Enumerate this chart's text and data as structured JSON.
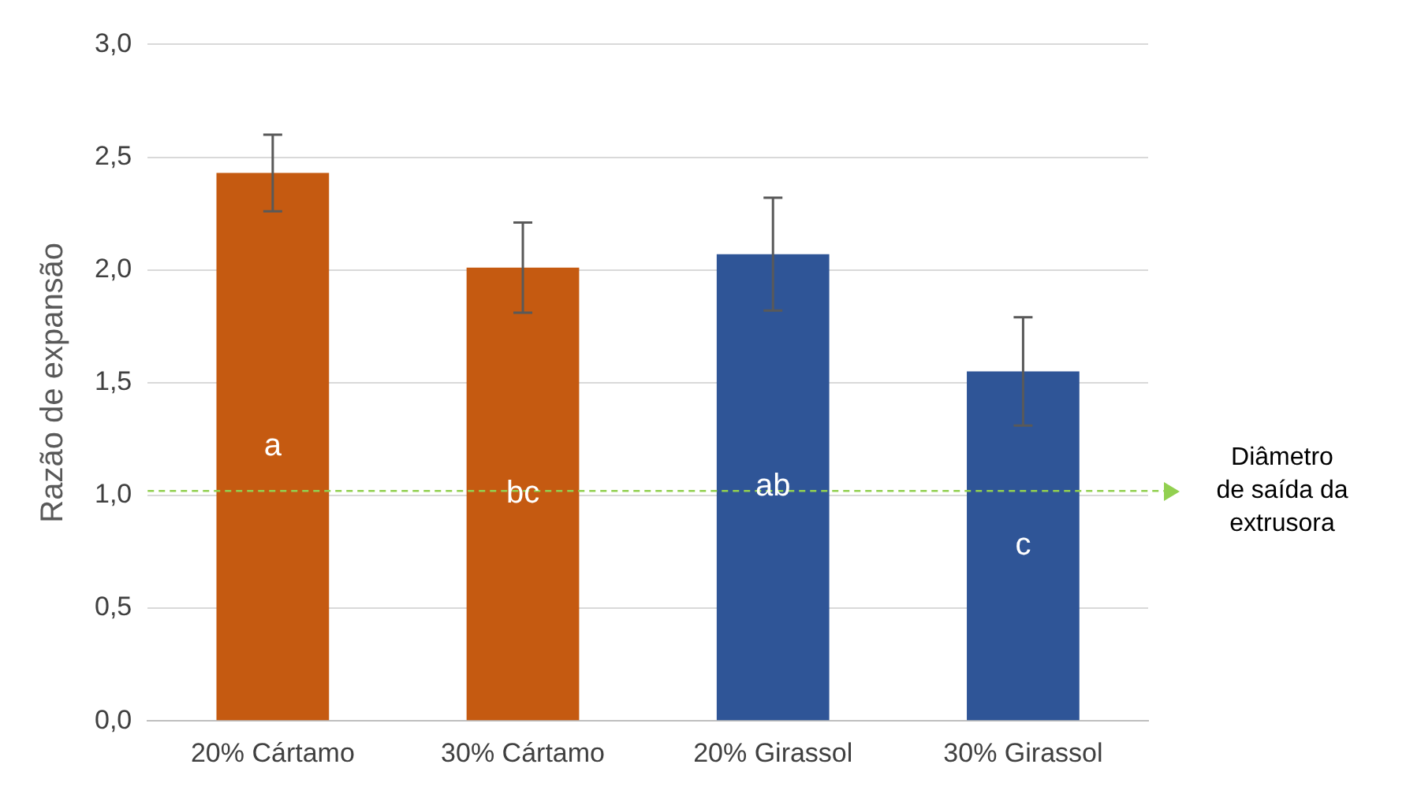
{
  "chart_data": {
    "type": "bar",
    "ylabel": "Razão de expansão",
    "categories": [
      "20% Cártamo",
      "30% Cártamo",
      "20% Girassol",
      "30% Girassol"
    ],
    "values": [
      2.43,
      2.01,
      2.07,
      1.55
    ],
    "colors": [
      "#c55a11",
      "#c55a11",
      "#2f5597",
      "#2f5597"
    ],
    "errors": [
      0.17,
      0.2,
      0.25,
      0.24
    ],
    "ylim": [
      0,
      3
    ],
    "yticks": [
      {
        "value": 0,
        "label": "0,0"
      },
      {
        "value": 0.5,
        "label": "0,5"
      },
      {
        "value": 1,
        "label": "1,0"
      },
      {
        "value": 1.5,
        "label": "1,5"
      },
      {
        "value": 2,
        "label": "2,0"
      },
      {
        "value": 2.5,
        "label": "2,5"
      },
      {
        "value": 3,
        "label": "3,0"
      }
    ],
    "grid": "y",
    "legend": false,
    "ref_lines": [
      {
        "axis": "y",
        "value": 1.02,
        "label": "Diâmetro\nde saída da\nextrusora",
        "color": "#92d050",
        "line_style": "dashed"
      }
    ],
    "annotations": [
      "a",
      "bc",
      "ab",
      "c"
    ]
  }
}
